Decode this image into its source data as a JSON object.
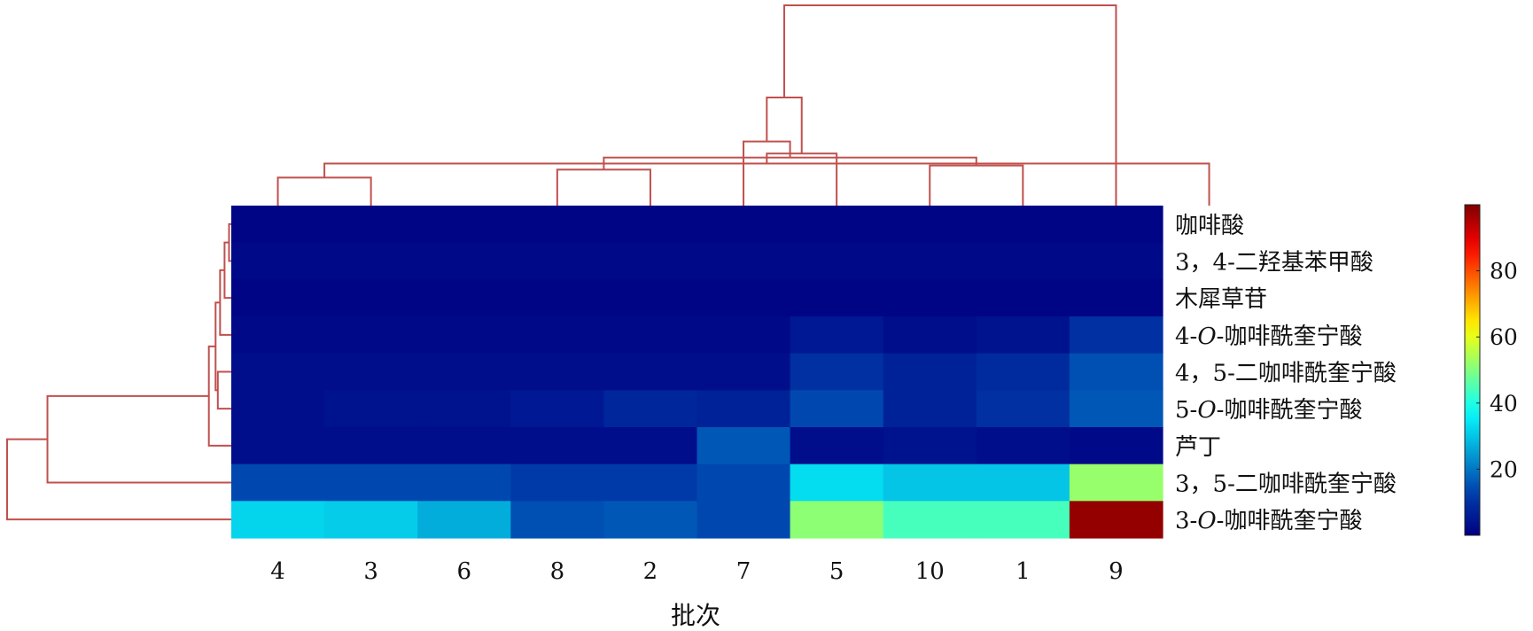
{
  "chart_data": {
    "type": "heatmap",
    "xlabel": "批次",
    "ylabel": "",
    "columns": [
      "4",
      "3",
      "6",
      "8",
      "2",
      "7",
      "5",
      "10",
      "1",
      "9"
    ],
    "rows": [
      "咖啡酸",
      "3，4-二羟基苯甲酸",
      "木犀草苷",
      "4-O-咖啡酰奎宁酸",
      "4，5-二咖啡酰奎宁酸",
      "5-O-咖啡酰奎宁酸",
      "芦丁",
      "3，5-二咖啡酰奎宁酸",
      "3-O-咖啡酰奎宁酸"
    ],
    "row_label_italic": [
      {
        "row": 3,
        "prefix": "4-",
        "italic": "O",
        "suffix": "-咖啡酰奎宁酸"
      },
      {
        "row": 5,
        "prefix": "5-",
        "italic": "O",
        "suffix": "-咖啡酰奎宁酸"
      },
      {
        "row": 8,
        "prefix": "3-",
        "italic": "O",
        "suffix": "-咖啡酰奎宁酸"
      }
    ],
    "values": [
      [
        1,
        1,
        1,
        1,
        1,
        1,
        1,
        1,
        1,
        1
      ],
      [
        2,
        2,
        2,
        2,
        2,
        2,
        2,
        2,
        2,
        2
      ],
      [
        1,
        1,
        1,
        1,
        1,
        1,
        1,
        1,
        1,
        1
      ],
      [
        2,
        2,
        2,
        2,
        2,
        2,
        5,
        3,
        4,
        10
      ],
      [
        3,
        3,
        3,
        3,
        3,
        3,
        10,
        7,
        9,
        15
      ],
      [
        3,
        4,
        4,
        5,
        8,
        7,
        14,
        7,
        10,
        16
      ],
      [
        3,
        3,
        3,
        3,
        3,
        16,
        3,
        4,
        3,
        2
      ],
      [
        14,
        14,
        14,
        12,
        12,
        14,
        33,
        30,
        30,
        52
      ],
      [
        32,
        31,
        27,
        15,
        16,
        14,
        51,
        44,
        44,
        98
      ]
    ],
    "colorbar": {
      "min": 0,
      "max": 100,
      "ticks": [
        20,
        40,
        60,
        80
      ],
      "colormap": "jet"
    },
    "dendrogram_color": "#c0504d",
    "col_dendrogram_height": 100,
    "col_merges": [
      [
        0,
        1,
        14
      ],
      [
        3,
        4,
        18
      ],
      [
        7,
        8,
        20
      ],
      [
        10,
        -1,
        21
      ],
      [
        -2,
        -3,
        24
      ],
      [
        6,
        -4,
        26
      ],
      [
        -5,
        5,
        32
      ],
      [
        -7,
        -6,
        54
      ],
      [
        -8,
        9,
        100
      ]
    ],
    "row_dendrogram_height": 100,
    "row_merges": [
      [
        0,
        1,
        1
      ],
      [
        -1,
        2,
        3
      ],
      [
        -2,
        3,
        5
      ],
      [
        4,
        5,
        6
      ],
      [
        -3,
        -4,
        7
      ],
      [
        -5,
        6,
        10
      ],
      [
        -6,
        7,
        82
      ],
      [
        -7,
        8,
        100
      ]
    ]
  }
}
